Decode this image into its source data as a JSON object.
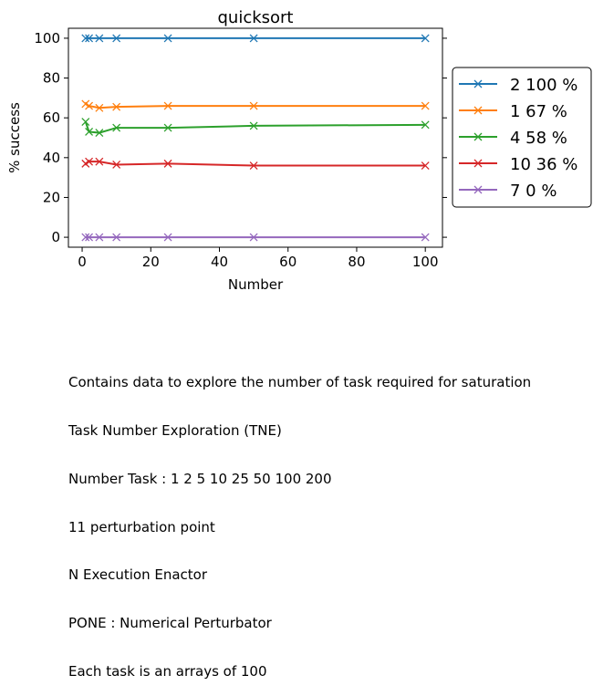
{
  "chart_data": {
    "type": "line",
    "title": "quicksort",
    "xlabel": "Number",
    "ylabel": "% success",
    "xlim": [
      -4,
      105
    ],
    "ylim": [
      -5,
      105
    ],
    "xticks": [
      0,
      20,
      40,
      60,
      80,
      100
    ],
    "yticks": [
      0,
      20,
      40,
      60,
      80,
      100
    ],
    "grid": false,
    "legend_position": "right-outside",
    "marker": "x",
    "series": [
      {
        "name": "2 100 %",
        "color": "#1f77b4",
        "x": [
          1,
          2,
          5,
          10,
          25,
          50,
          100
        ],
        "y": [
          100,
          100,
          100,
          100,
          100,
          100,
          100
        ]
      },
      {
        "name": "1 67 %",
        "color": "#ff7f0e",
        "x": [
          1,
          2,
          5,
          10,
          25,
          50,
          100
        ],
        "y": [
          67,
          66,
          65,
          65.5,
          66,
          66,
          66
        ]
      },
      {
        "name": "4 58 %",
        "color": "#2ca02c",
        "x": [
          1,
          2,
          5,
          10,
          25,
          50,
          100
        ],
        "y": [
          58,
          53,
          52.5,
          55,
          55,
          56,
          56.5
        ]
      },
      {
        "name": "10 36 %",
        "color": "#d62728",
        "x": [
          1,
          2,
          5,
          10,
          25,
          50,
          100
        ],
        "y": [
          37,
          38,
          38,
          36.5,
          37,
          36,
          36
        ]
      },
      {
        "name": "7 0 %",
        "color": "#9467bd",
        "x": [
          1,
          2,
          5,
          10,
          25,
          50,
          100
        ],
        "y": [
          0,
          0,
          0,
          0,
          0,
          0,
          0
        ]
      }
    ]
  },
  "caption": [
    "Contains data to explore the number of task required for saturation",
    "Task Number Exploration (TNE)",
    "Number Task : 1 2 5 10 25 50 100 200",
    "11 perturbation point",
    "N Execution Enactor",
    "PONE : Numerical Perturbator",
    "Each task is an arrays of 100"
  ]
}
